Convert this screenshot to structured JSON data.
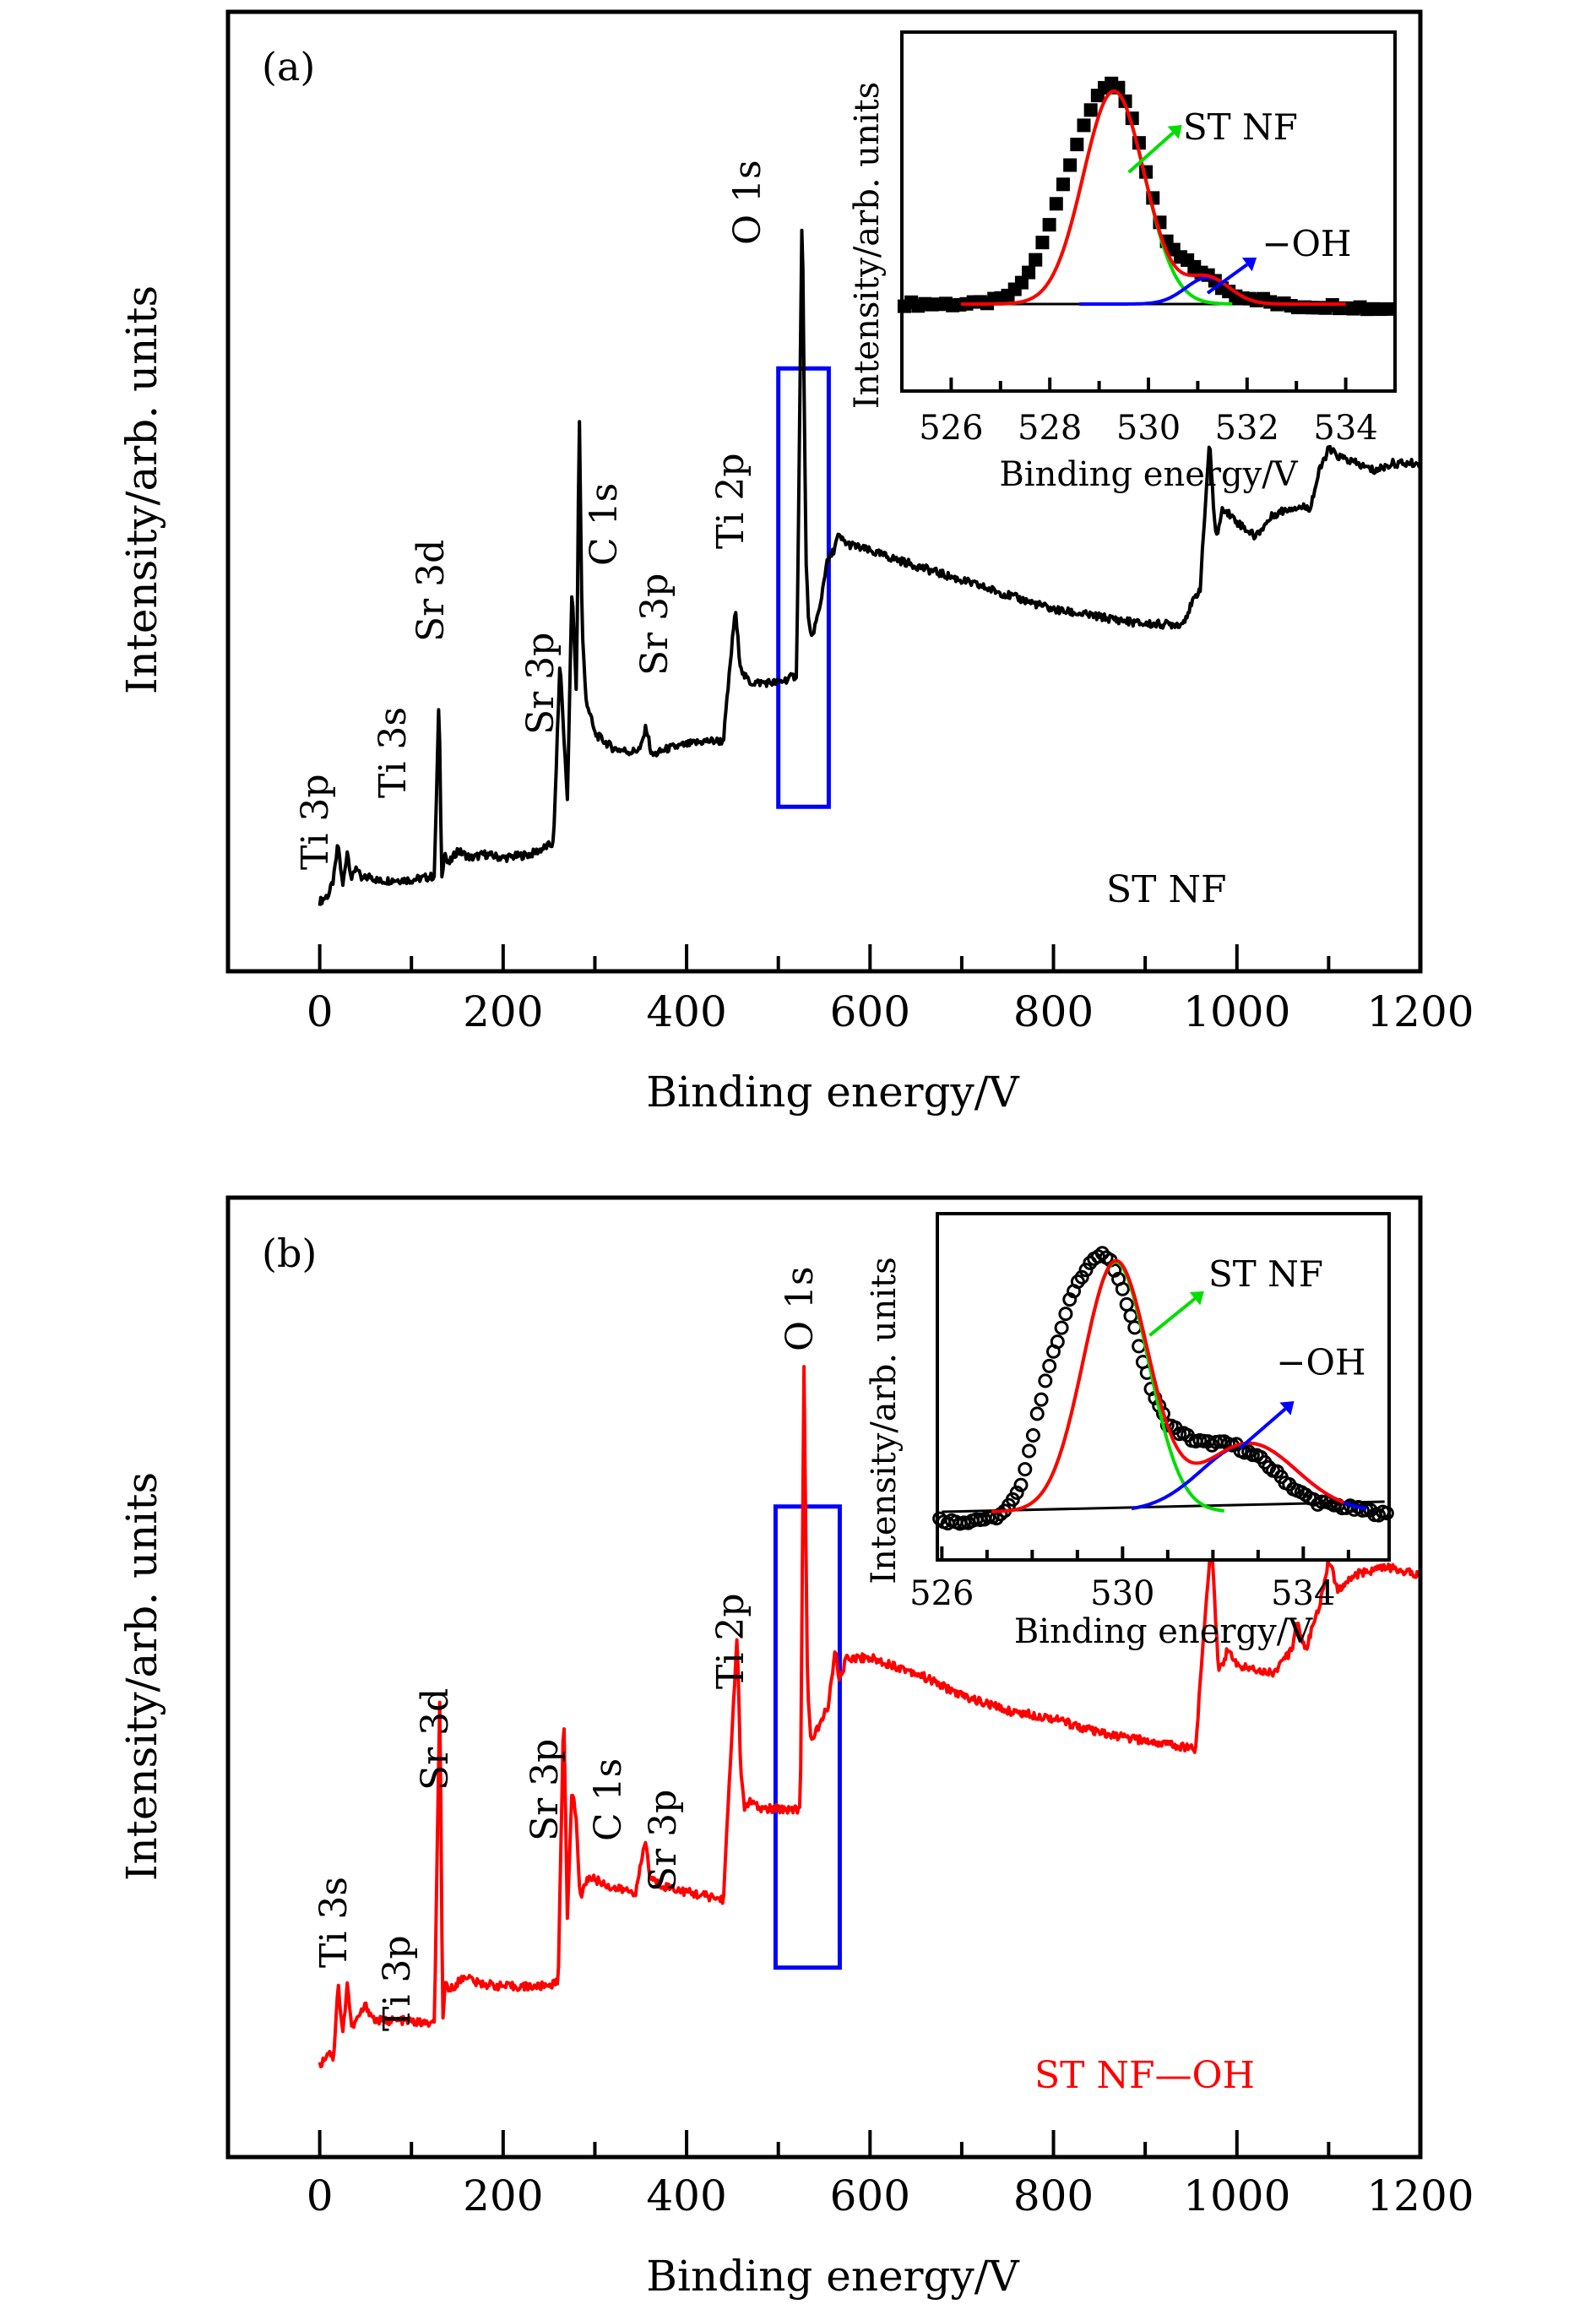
{
  "colors": {
    "spectrum_a": "#000000",
    "spectrum_b": "#ff0000",
    "o1s_highlight": "#0000ff",
    "fit_total": "#ff0000",
    "fit_lattice": "#00dd00",
    "fit_oh": "#0000ff",
    "baseline": "#000000",
    "sample_label_b": "#ff0000",
    "sample_label_a": "#000000"
  },
  "chart_data": [
    {
      "type": "line",
      "panel": "(a)",
      "title": "",
      "xlabel": "Binding energy/V",
      "ylabel": "Intensity/arb. units",
      "xlim": [
        -100,
        1200
      ],
      "ylim": [
        0,
        100
      ],
      "yticks_shown": false,
      "xticks": [
        0,
        200,
        400,
        600,
        800,
        1000,
        1200
      ],
      "xtick_labels": [
        "0",
        "200",
        "400",
        "600",
        "800",
        "1000",
        "1200"
      ],
      "minor_xticks": [
        100,
        300,
        500,
        700,
        900,
        1100
      ],
      "sample_label": "ST NF",
      "highlight_box": {
        "label": "O 1s",
        "x_range": [
          500,
          555
        ],
        "y_range": [
          15,
          75
        ]
      },
      "peak_labels": [
        {
          "label": "Ti 3p",
          "x": 0
        },
        {
          "label": "Ti 3s",
          "x": 70
        },
        {
          "label": "Sr 3d",
          "x": 135
        },
        {
          "label": "Sr 3p",
          "x": 245
        },
        {
          "label": "C 1s",
          "x": 295
        },
        {
          "label": "Sr 3p",
          "x": 355
        },
        {
          "label": "Ti 2p",
          "x": 450
        },
        {
          "label": "O 1s",
          "x": 525
        }
      ],
      "series": [
        {
          "name": "ST NF",
          "x": [
            0,
            10,
            15,
            20,
            25,
            30,
            35,
            40,
            45,
            55,
            65,
            80,
            100,
            125,
            130,
            133,
            136,
            140,
            150,
            165,
            180,
            200,
            230,
            255,
            262,
            266,
            270,
            275,
            280,
            283,
            286,
            290,
            300,
            320,
            340,
            350,
            356,
            362,
            380,
            420,
            440,
            453,
            458,
            462,
            470,
            500,
            520,
            526,
            530,
            533,
            536,
            545,
            552,
            560,
            565,
            575,
            600,
            650,
            700,
            750,
            800,
            850,
            900,
            940,
            960,
            970,
            975,
            978,
            985,
            1000,
            1020,
            1040,
            1060,
            1080,
            1090,
            1100,
            1110,
            1130,
            1150,
            1170,
            1200
          ],
          "y": [
            2,
            3,
            5,
            10,
            4,
            9,
            5,
            7,
            5,
            5.5,
            4.8,
            5,
            5,
            5.5,
            30,
            5,
            9,
            7,
            9,
            8,
            8.5,
            8,
            8.5,
            10,
            35,
            25,
            16,
            45,
            30,
            70,
            40,
            30,
            25,
            23,
            22.5,
            23,
            26,
            22,
            23,
            24,
            24,
            42,
            35,
            33,
            32,
            32,
            33,
            98,
            50,
            40,
            38,
            42,
            48,
            50,
            52,
            51,
            50,
            48,
            46,
            44,
            42,
            41,
            40,
            40,
            45,
            65,
            55,
            52,
            56,
            54,
            52,
            55,
            56,
            56,
            61,
            64,
            63,
            62,
            61,
            62,
            62
          ]
        }
      ]
    },
    {
      "type": "line",
      "panel": "(a) inset",
      "xlabel": "Binding energy/V",
      "ylabel": "Intensity/arb. units",
      "xlim": [
        525,
        535
      ],
      "ylim": [
        -0.15,
        1.1
      ],
      "xticks": [
        526,
        528,
        530,
        532,
        534
      ],
      "xtick_labels": [
        "526",
        "528",
        "530",
        "532",
        "534"
      ],
      "minor_xticks": [
        527,
        529,
        531,
        533
      ],
      "annotations": [
        {
          "text": "ST NF",
          "arrow_color": "#00dd00"
        },
        {
          "text": "−OH",
          "arrow_color": "#0000ff"
        }
      ],
      "series": [
        {
          "name": "data",
          "marker": "square",
          "color": "#000000",
          "x": [
            525,
            525.5,
            526,
            526.5,
            527,
            527.3,
            527.6,
            527.9,
            528.2,
            528.5,
            528.8,
            529.0,
            529.2,
            529.4,
            529.6,
            529.8,
            530.0,
            530.2,
            530.4,
            530.6,
            530.8,
            531.0,
            531.2,
            531.4,
            531.6,
            531.8,
            532.0,
            532.3,
            532.6,
            533,
            533.5,
            534,
            534.5,
            535
          ],
          "y": [
            0.0,
            0.0,
            0.0,
            0.0,
            0.02,
            0.06,
            0.15,
            0.3,
            0.5,
            0.7,
            0.88,
            0.97,
            1.0,
            0.98,
            0.9,
            0.75,
            0.55,
            0.38,
            0.27,
            0.22,
            0.19,
            0.16,
            0.13,
            0.09,
            0.06,
            0.04,
            0.03,
            0.02,
            0.0,
            -0.01,
            -0.01,
            -0.01,
            -0.02,
            -0.02
          ]
        },
        {
          "name": "fit total",
          "color": "#ff0000",
          "kind": "sum"
        },
        {
          "name": "ST NF (lattice O)",
          "color": "#00dd00",
          "kind": "gauss",
          "center": 529.3,
          "height": 0.97,
          "sigma": 0.62
        },
        {
          "name": "-OH",
          "color": "#0000ff",
          "kind": "gauss",
          "center": 531.2,
          "height": 0.12,
          "sigma": 0.45
        }
      ]
    },
    {
      "type": "line",
      "panel": "(b)",
      "title": "",
      "xlabel": "Binding energy/V",
      "ylabel": "Intensity/arb. units",
      "xlim": [
        -100,
        1200
      ],
      "ylim": [
        0,
        100
      ],
      "yticks_shown": false,
      "xticks": [
        0,
        200,
        400,
        600,
        800,
        1000,
        1200
      ],
      "xtick_labels": [
        "0",
        "200",
        "400",
        "600",
        "800",
        "1000",
        "1200"
      ],
      "minor_xticks": [
        100,
        300,
        500,
        700,
        900,
        1100
      ],
      "sample_label": "ST NF—OH",
      "highlight_box": {
        "label": "O 1s",
        "x_range": [
          497,
          567
        ],
        "y_range": [
          14,
          75
        ]
      },
      "peak_labels": [
        {
          "label": "Ti 3s",
          "x": 10
        },
        {
          "label": "Ti 3p",
          "x": 80
        },
        {
          "label": "Sr 3d",
          "x": 135
        },
        {
          "label": "Sr 3p",
          "x": 245
        },
        {
          "label": "C 1s",
          "x": 305
        },
        {
          "label": "Sr 3p",
          "x": 365
        },
        {
          "label": "Ti 2p",
          "x": 450
        },
        {
          "label": "O 1s",
          "x": 525
        }
      ],
      "series": [
        {
          "name": "ST NF—OH",
          "x": [
            0,
            10,
            15,
            20,
            25,
            30,
            35,
            40,
            50,
            60,
            70,
            90,
            125,
            131,
            134,
            137,
            142,
            150,
            160,
            170,
            200,
            240,
            260,
            266,
            270,
            275,
            280,
            284,
            288,
            295,
            320,
            345,
            355,
            360,
            370,
            400,
            440,
            455,
            459,
            463,
            468,
            480,
            510,
            524,
            528,
            532,
            536,
            545,
            555,
            562,
            566,
            575,
            600,
            650,
            700,
            750,
            800,
            850,
            900,
            955,
            965,
            972,
            980,
            990,
            1000,
            1040,
            1060,
            1065,
            1075,
            1090,
            1100,
            1110,
            1130,
            1160,
            1200
          ],
          "y": [
            1,
            3,
            2,
            12,
            5,
            12,
            6,
            7,
            9,
            7,
            7,
            7,
            6.5,
            51,
            6,
            12,
            11,
            12,
            13,
            12,
            11.5,
            11.5,
            12,
            49,
            20,
            38,
            33,
            23,
            25,
            26,
            24.5,
            24,
            31,
            26,
            25,
            24,
            23,
            58,
            40,
            35,
            36,
            35,
            35,
            35,
            93,
            50,
            44,
            46,
            49,
            56,
            52,
            55,
            55,
            53,
            50,
            48,
            47,
            45,
            44,
            43,
            60,
            71,
            53,
            56,
            54,
            53,
            56,
            60,
            56,
            62,
            68,
            64,
            66,
            67,
            66
          ]
        }
      ]
    },
    {
      "type": "line",
      "panel": "(b) inset",
      "xlabel": "Binding energy/V",
      "ylabel": "Intensity/arb. units",
      "xlim": [
        525.9,
        535.9
      ],
      "ylim": [
        -0.25,
        1.12
      ],
      "xticks": [
        526,
        530,
        534
      ],
      "xtick_labels": [
        "526",
        "530",
        "534"
      ],
      "minor_xticks": [
        527,
        528,
        529,
        531,
        532,
        533,
        535
      ],
      "annotations": [
        {
          "text": "ST NF",
          "arrow_color": "#00dd00"
        },
        {
          "text": "−OH",
          "arrow_color": "#0000ff"
        }
      ],
      "series": [
        {
          "name": "data",
          "marker": "circle",
          "color": "#000000",
          "x": [
            525.9,
            526.2,
            526.5,
            526.8,
            527.1,
            527.4,
            527.7,
            528.0,
            528.3,
            528.6,
            528.9,
            529.2,
            529.4,
            529.6,
            529.8,
            530.0,
            530.2,
            530.4,
            530.6,
            530.8,
            531.0,
            531.3,
            531.6,
            531.9,
            532.2,
            532.5,
            532.8,
            533.1,
            533.4,
            533.7,
            534.0,
            534.3,
            534.6,
            534.9,
            535.2,
            535.5,
            535.8
          ],
          "y": [
            -0.03,
            -0.04,
            -0.04,
            -0.03,
            -0.03,
            0.0,
            0.08,
            0.3,
            0.55,
            0.72,
            0.9,
            1.0,
            1.04,
            1.05,
            1.0,
            0.9,
            0.8,
            0.65,
            0.52,
            0.43,
            0.36,
            0.32,
            0.29,
            0.28,
            0.28,
            0.27,
            0.24,
            0.21,
            0.16,
            0.11,
            0.07,
            0.04,
            0.03,
            0.02,
            0.01,
            0.0,
            -0.01
          ]
        },
        {
          "name": "fit total",
          "color": "#ff0000",
          "kind": "sum"
        },
        {
          "name": "ST NF (lattice O)",
          "color": "#00dd00",
          "kind": "gauss",
          "center": 529.85,
          "height": 1.02,
          "sigma": 0.72
        },
        {
          "name": "-OH",
          "color": "#0000ff",
          "kind": "gauss",
          "center": 532.8,
          "height": 0.28,
          "sigma": 1.05
        }
      ]
    }
  ]
}
